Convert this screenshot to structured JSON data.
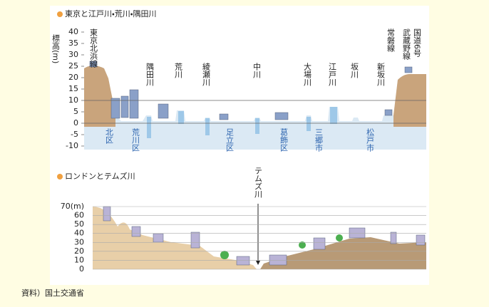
{
  "tokyo": {
    "title": "東京と江戸川・荒川・隅田川",
    "y_label": "標高(m)",
    "ylim": [
      -10,
      40
    ],
    "yticks": [
      40,
      35,
      30,
      25,
      20,
      15,
      10,
      5,
      0,
      -5,
      -10
    ],
    "top_labels": [
      "東京北浜線",
      "隅田川",
      "荒川",
      "綾瀬川",
      "中川",
      "大場川",
      "江戸川",
      "坂川",
      "新坂川",
      "常磐線",
      "武蔵野線",
      "国道6号"
    ],
    "area_labels": [
      "北区",
      "荒川区",
      "足立区",
      "葛飾区",
      "三郷市",
      "松戸市"
    ]
  },
  "london": {
    "title": "ロンドンとテムズ川",
    "ylim": [
      0,
      70
    ],
    "yticks": [
      {
        "value": 70,
        "label": "70(m)"
      },
      60,
      50,
      40,
      30,
      20,
      10,
      0
    ],
    "river_label": "テムズ川"
  },
  "source": "資料）国土交通省"
}
